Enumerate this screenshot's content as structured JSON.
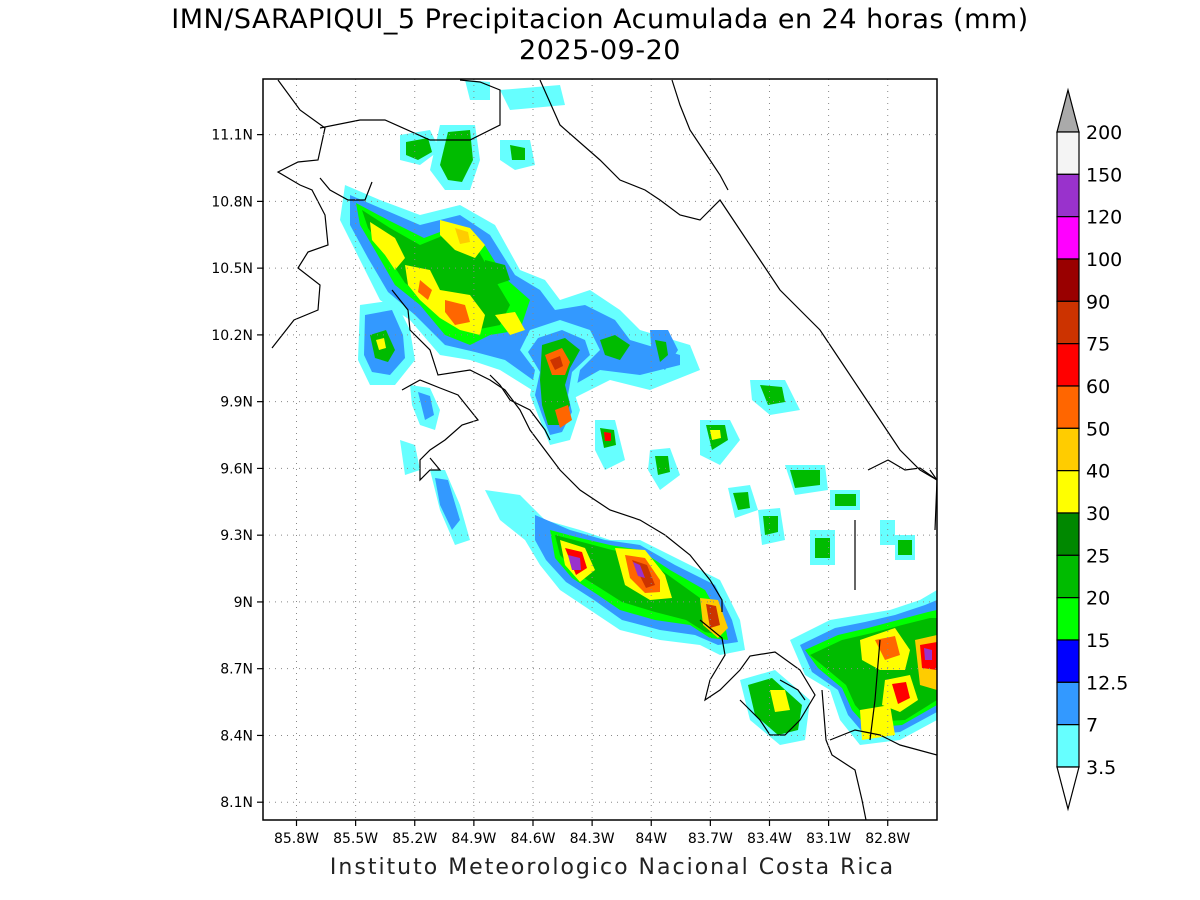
{
  "title": {
    "line1": "IMN/SARAPIQUI_5 Precipitacion Acumulada en 24 horas (mm)",
    "line2": "2025-09-20"
  },
  "footer": "Instituto Meteorologico Nacional Costa Rica",
  "map": {
    "lat_labels": [
      "11.1N",
      "10.8N",
      "10.5N",
      "10.2N",
      "9.9N",
      "9.6N",
      "9.3N",
      "9N",
      "8.7N",
      "8.4N",
      "8.1N"
    ],
    "lat_values": [
      11.1,
      10.8,
      10.5,
      10.2,
      9.9,
      9.6,
      9.3,
      9.0,
      8.7,
      8.4,
      8.1
    ],
    "lon_labels": [
      "85.8W",
      "85.5W",
      "85.2W",
      "84.9W",
      "84.6W",
      "84.3W",
      "84W",
      "83.7W",
      "83.4W",
      "83.1W",
      "82.8W"
    ],
    "lon_values": [
      -85.8,
      -85.5,
      -85.2,
      -84.9,
      -84.6,
      -84.3,
      -84.0,
      -83.7,
      -83.4,
      -83.1,
      -82.8
    ],
    "lon_range": [
      -85.97,
      -82.55
    ],
    "lat_range": [
      8.02,
      11.35
    ]
  },
  "colorbar": {
    "labels": [
      "200",
      "150",
      "120",
      "100",
      "90",
      "75",
      "60",
      "50",
      "40",
      "30",
      "25",
      "20",
      "15",
      "12.5",
      "7",
      "3.5"
    ],
    "colors": [
      "#aaaaaa",
      "#f4f4f4",
      "#9932cc",
      "#ff00ff",
      "#990000",
      "#cc3300",
      "#ff0000",
      "#ff6600",
      "#ffcc00",
      "#ffff00",
      "#008800",
      "#00bb00",
      "#00ff00",
      "#0000ff",
      "#3399ff",
      "#66ffff",
      "#ffffff"
    ]
  }
}
